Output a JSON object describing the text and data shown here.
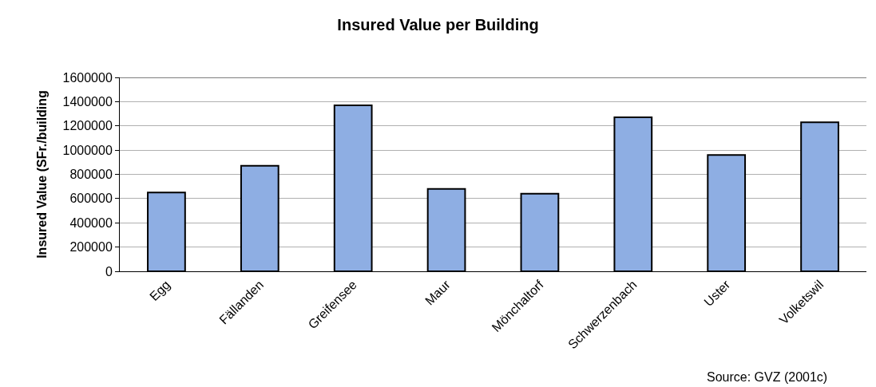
{
  "chart_data": {
    "type": "bar",
    "title": "Insured Value per Building",
    "ylabel": "Insured Value (SFr./building",
    "categories": [
      "Egg",
      "Fällanden",
      "Greifensee",
      "Maur",
      "Mönchaltorf",
      "Schwerzenbach",
      "Uster",
      "Volketswil"
    ],
    "values": [
      650000,
      870000,
      1370000,
      680000,
      640000,
      1270000,
      960000,
      1230000
    ],
    "color": "#8eaee3",
    "ylim": [
      0,
      1600000
    ],
    "yticks": [
      0,
      200000,
      400000,
      600000,
      800000,
      1000000,
      1200000,
      1400000,
      1600000
    ],
    "grid": "y",
    "annotations": [
      "Source: GVZ (2001c)"
    ]
  }
}
